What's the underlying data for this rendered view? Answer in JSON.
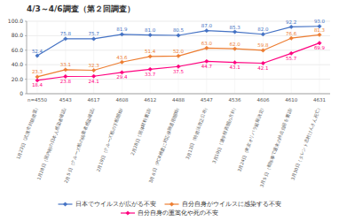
{
  "chart_data": {
    "type": "line",
    "title": "4/3～4/6調査（第２回調査）",
    "categories": [
      "1月23日（武漢市封鎖措置）",
      "1月28日（国内初の日本人感染者確認）",
      "2月５日（クルーズ船の搞乗者感染確認）",
      "2月19日（クルーズ船の下船開始）",
      "2月28日（国体材料要請）",
      "3月６日（PCR検査に対応保険適用開始）",
      "3月13日（特措法改正公布）",
      "3月19日（連学校再開の方針）",
      "3月24日（東京オリパラ延期決定）",
      "3月５日（都知事で週末の外出自簛を要請）",
      "3月30日（タレント志村けんさん死亡）"
    ],
    "n_values": [
      "n=4550",
      "4543",
      "4617",
      "4608",
      "4612",
      "4488",
      "4547",
      "4536",
      "4606",
      "4610",
      "4631"
    ],
    "series": [
      {
        "name": "日本でウイルスが広がる不安",
        "color": "#4472C4",
        "marker": "diamond",
        "values": [
          52.4,
          75.8,
          75.7,
          81.9,
          81.0,
          80.5,
          87.0,
          85.3,
          82.0,
          92.2,
          93.0
        ],
        "value_labels": [
          "52.4",
          "75.8",
          "75.7",
          "81.9",
          "81.0",
          "80.5",
          "87.0",
          "85.3",
          "82.0",
          "92.2",
          "93.0"
        ]
      },
      {
        "name": "自分自身がウイルスに感染する不安",
        "color": "#ED7D31",
        "marker": "diamond",
        "values": [
          23.3,
          33.1,
          32.3,
          43.6,
          51.4,
          52.0,
          63.0,
          62.0,
          59.8,
          76.6,
          81.3
        ],
        "value_labels": [
          "23.3",
          "33.1",
          "32.3",
          "43.6",
          "51.4",
          "52.0",
          "63.0",
          "62.0",
          "59.8",
          "76.6",
          "81.3"
        ]
      },
      {
        "name": "自分自身の重篙化や死の不安",
        "color": "#FF007F",
        "marker": "diamond",
        "values": [
          18.4,
          23.8,
          24.1,
          29.4,
          33.7,
          37.5,
          44.7,
          43.1,
          42.1,
          55.7,
          69.9
        ],
        "value_labels": [
          "18.4",
          "23.8",
          "24.1",
          "29.4",
          "33.7",
          "37.5",
          "44.7",
          "43.1",
          "42.1",
          "55.7",
          "69.9"
        ]
      }
    ],
    "ylim": [
      0,
      100
    ],
    "yticks": [
      0,
      {
        "value": 20,
        "label": "20.0"
      },
      {
        "value": 40,
        "label": "40.0"
      },
      {
        "value": 60,
        "label": "60.0"
      },
      {
        "value": 80,
        "label": "80.0"
      },
      {
        "value": 100,
        "label": "100.0"
      }
    ],
    "grid": true,
    "data_labels": true
  }
}
